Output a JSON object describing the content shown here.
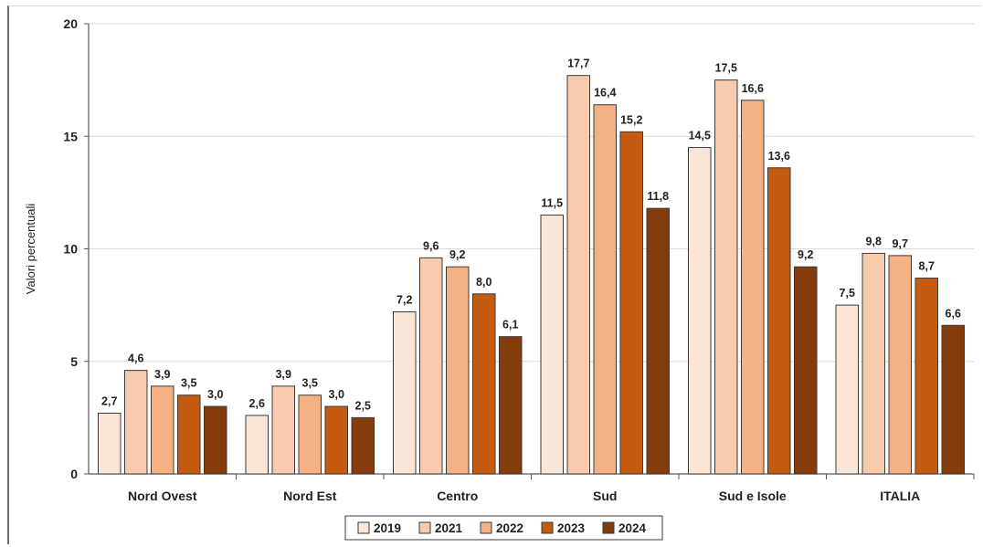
{
  "chart_data": {
    "type": "bar",
    "ylabel": "Valori percentuali",
    "ylim": [
      0,
      20
    ],
    "yticks": [
      0,
      5,
      10,
      15,
      20
    ],
    "categories": [
      "Nord Ovest",
      "Nord Est",
      "Centro",
      "Sud",
      "Sud e Isole",
      "ITALIA"
    ],
    "series": [
      {
        "name": "2019",
        "color": "#fbe5d6",
        "values": [
          2.7,
          2.6,
          7.2,
          11.5,
          14.5,
          7.5
        ]
      },
      {
        "name": "2021",
        "color": "#f8cbad",
        "values": [
          4.6,
          3.9,
          9.6,
          17.7,
          17.5,
          9.8
        ]
      },
      {
        "name": "2022",
        "color": "#f4b183",
        "values": [
          3.9,
          3.5,
          9.2,
          16.4,
          16.6,
          9.7
        ]
      },
      {
        "name": "2023",
        "color": "#c55a11",
        "values": [
          3.5,
          3.0,
          8.0,
          15.2,
          13.6,
          8.7
        ]
      },
      {
        "name": "2024",
        "color": "#843c0c",
        "values": [
          3.0,
          2.5,
          6.1,
          11.8,
          9.2,
          6.6
        ]
      }
    ],
    "value_labels": [
      [
        "2,7",
        "2,6",
        "7,2",
        "11,5",
        "14,5",
        "7,5"
      ],
      [
        "4,6",
        "3,9",
        "9,6",
        "17,7",
        "17,5",
        "9,8"
      ],
      [
        "3,9",
        "3,5",
        "9,2",
        "16,4",
        "16,6",
        "9,7"
      ],
      [
        "3,5",
        "3,0",
        "8,0",
        "15,2",
        "13,6",
        "8,7"
      ],
      [
        "3,0",
        "2,5",
        "6,1",
        "11,8",
        "9,2",
        "6,6"
      ]
    ],
    "grid": true,
    "legend": "bottom"
  }
}
